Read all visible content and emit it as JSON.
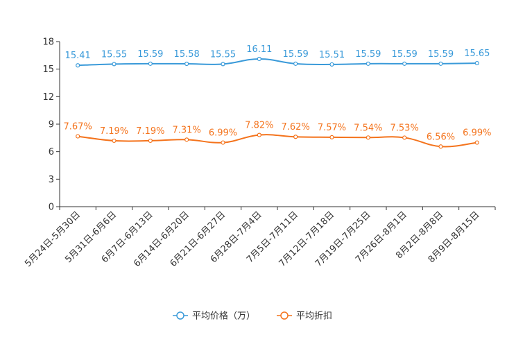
{
  "chart_data": {
    "type": "line",
    "title": "",
    "xlabel": "",
    "ylabel": "",
    "ylim": [
      0,
      18
    ],
    "yticks": [
      0,
      3,
      6,
      9,
      12,
      15,
      18
    ],
    "grid": false,
    "legend_position": "bottom-center",
    "categories": [
      "5月24日-5月30日",
      "5月31日-6月6日",
      "6月7日-6月13日",
      "6月14日-6月20日",
      "6月21日-6月27日",
      "6月28日-7月4日",
      "7月5日-7月11日",
      "7月12日-7月18日",
      "7月19日-7月25日",
      "7月26日-8月1日",
      "8月2日-8月8日",
      "8月9日-8月15日"
    ],
    "series": [
      {
        "name": "平均价格（万）",
        "color": "#3a9ad9",
        "values": [
          15.41,
          15.55,
          15.59,
          15.58,
          15.55,
          16.11,
          15.59,
          15.51,
          15.59,
          15.59,
          15.59,
          15.65
        ],
        "labels": [
          "15.41",
          "15.55",
          "15.59",
          "15.58",
          "15.55",
          "16.11",
          "15.59",
          "15.51",
          "15.59",
          "15.59",
          "15.59",
          "15.65"
        ]
      },
      {
        "name": "平均折扣",
        "color": "#f4731c",
        "values": [
          7.67,
          7.19,
          7.19,
          7.31,
          6.99,
          7.82,
          7.62,
          7.57,
          7.54,
          7.53,
          6.56,
          6.99
        ],
        "labels": [
          "7.67%",
          "7.19%",
          "7.19%",
          "7.31%",
          "6.99%",
          "7.82%",
          "7.62%",
          "7.57%",
          "7.54%",
          "7.53%",
          "6.56%",
          "6.99%"
        ]
      }
    ]
  }
}
